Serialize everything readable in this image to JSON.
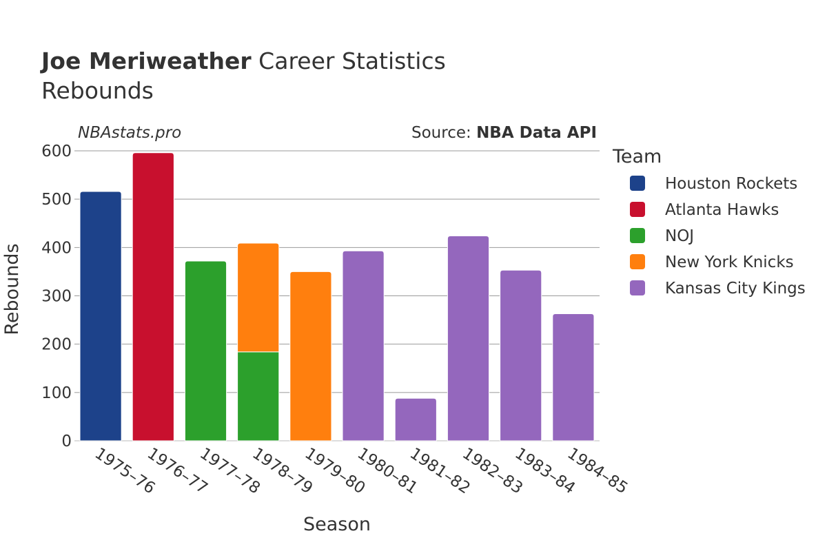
{
  "header": {
    "title_bold": "Joe Meriweather",
    "title_rest": " Career Statistics",
    "subtitle": "Rebounds",
    "watermark": "NBAstats.pro",
    "source_prefix": "Source: ",
    "source_name": "NBA Data API"
  },
  "legend": {
    "title": "Team"
  },
  "chart_data": {
    "type": "bar",
    "stacked": true,
    "xlabel": "Season",
    "ylabel": "Rebounds",
    "ylim": [
      0,
      600
    ],
    "yticks": [
      0,
      100,
      200,
      300,
      400,
      500,
      600
    ],
    "grid": true,
    "legend_position": "right",
    "categories": [
      "1975–76",
      "1976–77",
      "1977–78",
      "1978–79",
      "1979–80",
      "1980–81",
      "1981–82",
      "1982–83",
      "1983–84",
      "1984–85"
    ],
    "series": [
      {
        "name": "Houston Rockets",
        "color": "#1d428a",
        "values": [
          516,
          null,
          null,
          null,
          null,
          null,
          null,
          null,
          null,
          null
        ]
      },
      {
        "name": "Atlanta Hawks",
        "color": "#c8102e",
        "values": [
          null,
          596,
          null,
          null,
          null,
          null,
          null,
          null,
          null,
          null
        ]
      },
      {
        "name": "NOJ",
        "color": "#2ca02c",
        "values": [
          null,
          null,
          372,
          184,
          null,
          null,
          null,
          null,
          null,
          null
        ]
      },
      {
        "name": "New York Knicks",
        "color": "#ff7f0e",
        "values": [
          null,
          null,
          null,
          225,
          350,
          null,
          null,
          null,
          null,
          null
        ]
      },
      {
        "name": "Kansas City Kings",
        "color": "#9467bd",
        "values": [
          null,
          null,
          null,
          null,
          null,
          393,
          88,
          424,
          353,
          263
        ]
      }
    ]
  }
}
